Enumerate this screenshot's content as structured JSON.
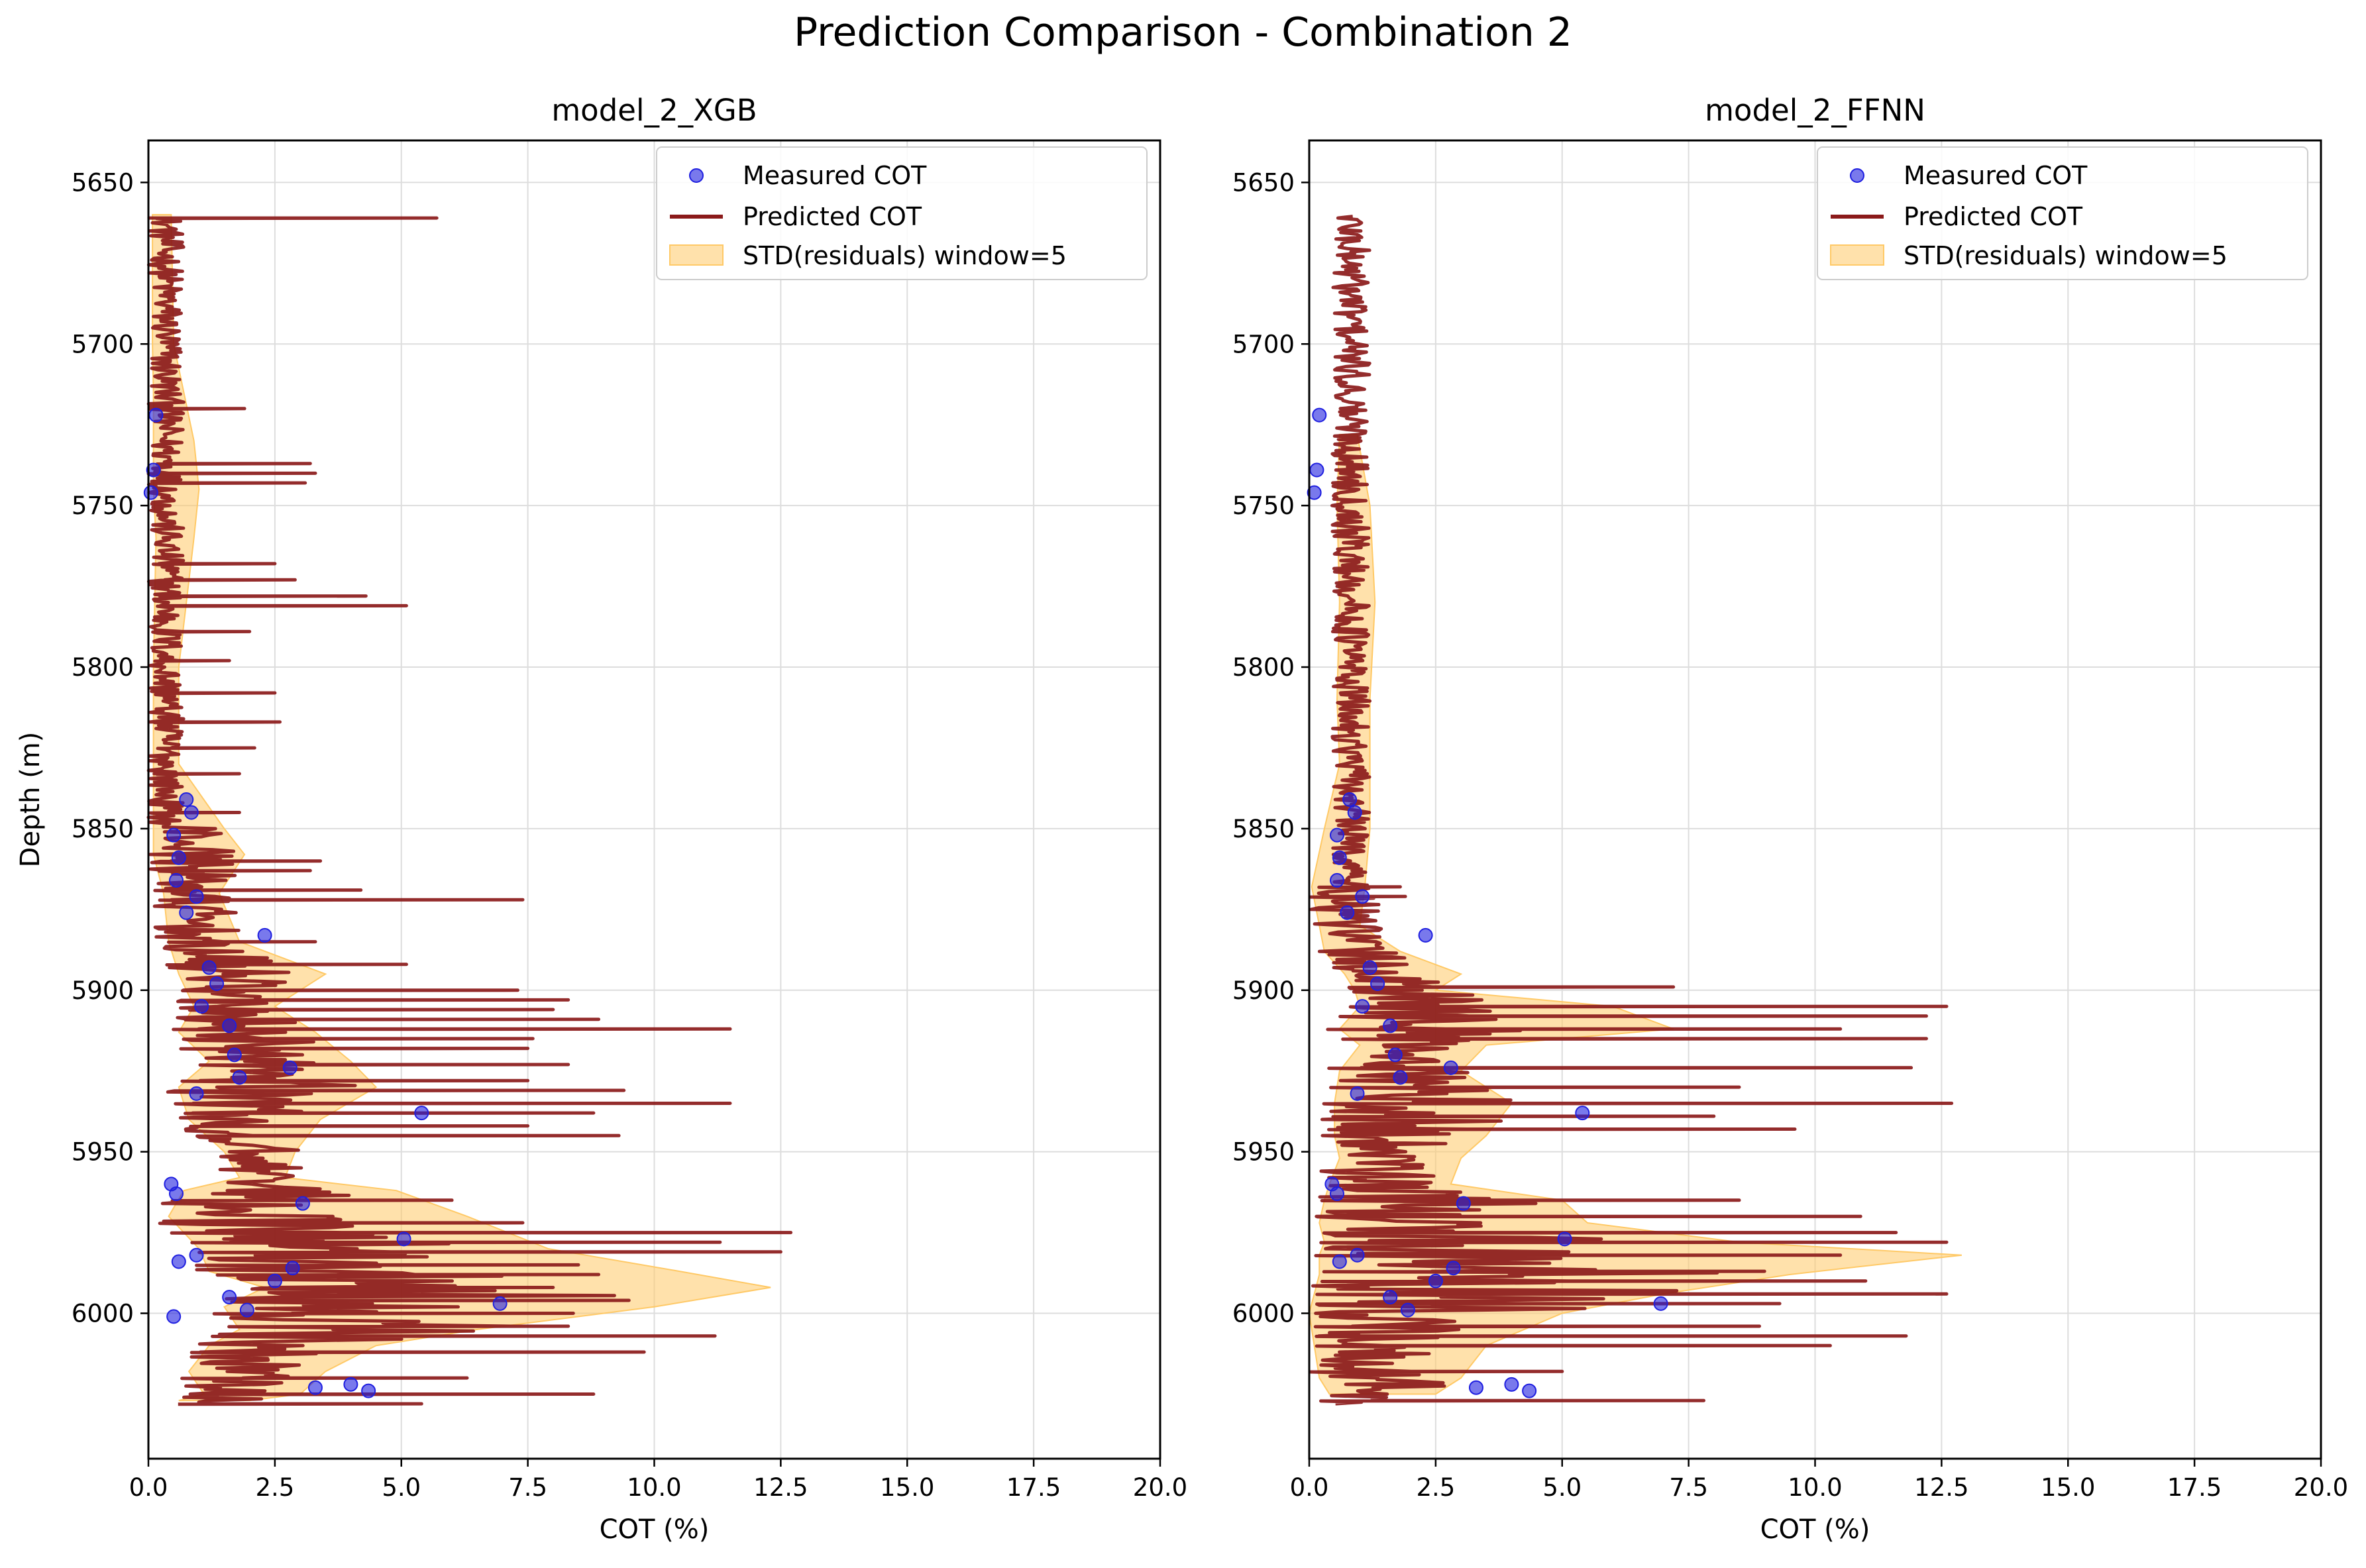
{
  "suptitle": "Prediction Comparison - Combination 2",
  "colors": {
    "measured": "#1f1fe0",
    "predicted": "#8b1a1a",
    "band": "#ffc966",
    "grid": "#dddddd"
  },
  "legend": {
    "measured": "Measured COT",
    "predicted": "Predicted COT",
    "band": "STD(residuals) window=5"
  },
  "chart_data": [
    {
      "type": "line",
      "title": "model_2_XGB",
      "xlabel": "COT (%)",
      "ylabel": "Depth (m)",
      "xlim": [
        0,
        20
      ],
      "ylim": [
        6045,
        5637
      ],
      "y_inverted": true,
      "xticks": [
        "0.0",
        "2.5",
        "5.0",
        "7.5",
        "10.0",
        "12.5",
        "15.0",
        "17.5",
        "20.0"
      ],
      "yticks": [
        "5650",
        "5700",
        "5750",
        "5800",
        "5850",
        "5900",
        "5950",
        "6000"
      ],
      "grid": true,
      "legend_position": "upper-right",
      "measured": [
        [
          0.15,
          5722
        ],
        [
          0.1,
          5739
        ],
        [
          0.05,
          5746
        ],
        [
          0.75,
          5841
        ],
        [
          0.85,
          5845
        ],
        [
          0.5,
          5852
        ],
        [
          0.6,
          5859
        ],
        [
          0.55,
          5866
        ],
        [
          0.95,
          5871
        ],
        [
          0.75,
          5876
        ],
        [
          2.3,
          5883
        ],
        [
          1.2,
          5893
        ],
        [
          1.35,
          5898
        ],
        [
          1.05,
          5905
        ],
        [
          1.6,
          5911
        ],
        [
          1.7,
          5920
        ],
        [
          2.8,
          5924
        ],
        [
          1.8,
          5927
        ],
        [
          0.95,
          5932
        ],
        [
          5.4,
          5938
        ],
        [
          0.45,
          5960
        ],
        [
          0.55,
          5963
        ],
        [
          3.05,
          5966
        ],
        [
          5.05,
          5977
        ],
        [
          0.95,
          5982
        ],
        [
          0.6,
          5984
        ],
        [
          2.85,
          5986
        ],
        [
          2.5,
          5990
        ],
        [
          1.6,
          5995
        ],
        [
          6.95,
          5997
        ],
        [
          1.95,
          5999
        ],
        [
          0.5,
          6001
        ],
        [
          3.3,
          6023
        ],
        [
          4.0,
          6022
        ],
        [
          4.35,
          6024
        ]
      ],
      "band_profile": [
        [
          5660,
          0.08,
          0.45
        ],
        [
          5700,
          0.08,
          0.5
        ],
        [
          5715,
          0.1,
          0.7
        ],
        [
          5730,
          0.1,
          0.9
        ],
        [
          5745,
          0.1,
          1.0
        ],
        [
          5760,
          0.15,
          0.9
        ],
        [
          5800,
          0.1,
          0.6
        ],
        [
          5830,
          0.1,
          0.6
        ],
        [
          5850,
          0.1,
          1.5
        ],
        [
          5858,
          0.1,
          1.9
        ],
        [
          5870,
          0.3,
          1.4
        ],
        [
          5885,
          0.4,
          1.8
        ],
        [
          5895,
          0.6,
          3.5
        ],
        [
          5905,
          0.9,
          2.5
        ],
        [
          5913,
          0.6,
          3.3
        ],
        [
          5922,
          1.2,
          4.0
        ],
        [
          5930,
          0.6,
          4.5
        ],
        [
          5940,
          0.8,
          3.4
        ],
        [
          5950,
          1.5,
          2.9
        ],
        [
          5958,
          1.8,
          2.7
        ],
        [
          5962,
          0.7,
          4.9
        ],
        [
          5970,
          0.4,
          6.3
        ],
        [
          5980,
          1.0,
          7.9
        ],
        [
          5987,
          1.2,
          10.5
        ],
        [
          5992,
          2.3,
          12.3
        ],
        [
          5998,
          1.5,
          10.0
        ],
        [
          6005,
          1.8,
          6.5
        ],
        [
          6010,
          1.2,
          4.5
        ],
        [
          6018,
          0.8,
          3.5
        ],
        [
          6025,
          1.1,
          3.0
        ],
        [
          6027,
          0.6,
          2.0
        ]
      ],
      "prediction_spikes": [
        [
          5661,
          5.7
        ],
        [
          5720,
          1.9
        ],
        [
          5737,
          3.2
        ],
        [
          5740,
          3.3
        ],
        [
          5743,
          3.1
        ],
        [
          5768,
          2.5
        ],
        [
          5773,
          2.9
        ],
        [
          5778,
          4.3
        ],
        [
          5781,
          5.1
        ],
        [
          5789,
          2.0
        ],
        [
          5798,
          1.6
        ],
        [
          5808,
          2.5
        ],
        [
          5817,
          2.6
        ],
        [
          5825,
          2.1
        ],
        [
          5833,
          1.8
        ],
        [
          5845,
          1.8
        ],
        [
          5860,
          3.4
        ],
        [
          5863,
          3.2
        ],
        [
          5869,
          4.2
        ],
        [
          5872,
          7.4
        ],
        [
          5885,
          3.3
        ],
        [
          5892,
          5.1
        ],
        [
          5900,
          7.3
        ],
        [
          5903,
          8.3
        ],
        [
          5906,
          8.0
        ],
        [
          5909,
          8.9
        ],
        [
          5912,
          11.5
        ],
        [
          5915,
          7.6
        ],
        [
          5918,
          7.5
        ],
        [
          5923,
          8.3
        ],
        [
          5928,
          7.5
        ],
        [
          5931,
          9.4
        ],
        [
          5935,
          11.5
        ],
        [
          5938,
          8.8
        ],
        [
          5942,
          7.5
        ],
        [
          5945,
          9.3
        ],
        [
          5965,
          6.0
        ],
        [
          5972,
          7.4
        ],
        [
          5975,
          12.7
        ],
        [
          5978,
          11.3
        ],
        [
          5981,
          12.5
        ],
        [
          5985,
          8.5
        ],
        [
          5988,
          8.9
        ],
        [
          5992,
          8.0
        ],
        [
          5996,
          9.5
        ],
        [
          6000,
          8.4
        ],
        [
          6004,
          8.3
        ],
        [
          6007,
          11.2
        ],
        [
          6012,
          9.8
        ],
        [
          6020,
          6.3
        ],
        [
          6025,
          8.8
        ],
        [
          6028,
          5.4
        ]
      ]
    },
    {
      "type": "line",
      "title": "model_2_FFNN",
      "xlabel": "COT (%)",
      "ylabel": "",
      "xlim": [
        0,
        20
      ],
      "ylim": [
        6045,
        5637
      ],
      "y_inverted": true,
      "xticks": [
        "0.0",
        "2.5",
        "5.0",
        "7.5",
        "10.0",
        "12.5",
        "15.0",
        "17.5",
        "20.0"
      ],
      "yticks": [
        "5650",
        "5700",
        "5750",
        "5800",
        "5850",
        "5900",
        "5950",
        "6000"
      ],
      "grid": true,
      "legend_position": "upper-right",
      "measured": [
        [
          0.2,
          5722
        ],
        [
          0.15,
          5739
        ],
        [
          0.1,
          5746
        ],
        [
          0.8,
          5841
        ],
        [
          0.9,
          5845
        ],
        [
          0.55,
          5852
        ],
        [
          0.6,
          5859
        ],
        [
          0.55,
          5866
        ],
        [
          1.05,
          5871
        ],
        [
          0.75,
          5876
        ],
        [
          2.3,
          5883
        ],
        [
          1.2,
          5893
        ],
        [
          1.35,
          5898
        ],
        [
          1.05,
          5905
        ],
        [
          1.6,
          5911
        ],
        [
          1.7,
          5920
        ],
        [
          2.8,
          5924
        ],
        [
          1.8,
          5927
        ],
        [
          0.95,
          5932
        ],
        [
          5.4,
          5938
        ],
        [
          0.45,
          5960
        ],
        [
          0.55,
          5963
        ],
        [
          3.05,
          5966
        ],
        [
          5.05,
          5977
        ],
        [
          0.95,
          5982
        ],
        [
          0.6,
          5984
        ],
        [
          2.85,
          5986
        ],
        [
          2.5,
          5990
        ],
        [
          1.6,
          5995
        ],
        [
          6.95,
          5997
        ],
        [
          1.95,
          5999
        ],
        [
          3.3,
          6023
        ],
        [
          4.0,
          6022
        ],
        [
          4.35,
          6024
        ]
      ],
      "band_profile": [
        [
          5728,
          0.6,
          0.95
        ],
        [
          5750,
          0.55,
          1.2
        ],
        [
          5780,
          0.6,
          1.3
        ],
        [
          5810,
          0.55,
          1.2
        ],
        [
          5830,
          0.6,
          1.2
        ],
        [
          5850,
          0.3,
          1.2
        ],
        [
          5868,
          0.05,
          1.1
        ],
        [
          5880,
          0.2,
          1.0
        ],
        [
          5888,
          0.3,
          1.8
        ],
        [
          5895,
          0.7,
          3.0
        ],
        [
          5900,
          0.9,
          2.5
        ],
        [
          5905,
          1.0,
          6.0
        ],
        [
          5912,
          0.6,
          7.2
        ],
        [
          5917,
          1.0,
          3.5
        ],
        [
          5925,
          0.6,
          3.0
        ],
        [
          5935,
          0.5,
          4.0
        ],
        [
          5945,
          0.5,
          3.5
        ],
        [
          5952,
          0.6,
          3.0
        ],
        [
          5960,
          0.4,
          2.8
        ],
        [
          5965,
          0.3,
          5.0
        ],
        [
          5972,
          0.2,
          5.5
        ],
        [
          5978,
          0.3,
          8.5
        ],
        [
          5982,
          0.2,
          12.9
        ],
        [
          5988,
          0.2,
          9.5
        ],
        [
          5994,
          0.1,
          7.0
        ],
        [
          6000,
          0.0,
          5.0
        ],
        [
          6010,
          0.1,
          3.5
        ],
        [
          6020,
          0.2,
          3.0
        ],
        [
          6025,
          0.4,
          2.5
        ]
      ],
      "prediction_spikes": [
        [
          5868,
          1.8
        ],
        [
          5871,
          1.9
        ],
        [
          5899,
          7.2
        ],
        [
          5905,
          12.6
        ],
        [
          5908,
          12.2
        ],
        [
          5912,
          10.5
        ],
        [
          5915,
          12.2
        ],
        [
          5924,
          11.9
        ],
        [
          5930,
          8.5
        ],
        [
          5935,
          12.7
        ],
        [
          5939,
          8.0
        ],
        [
          5943,
          9.6
        ],
        [
          5965,
          8.5
        ],
        [
          5970,
          10.9
        ],
        [
          5975,
          11.6
        ],
        [
          5978,
          12.6
        ],
        [
          5982,
          10.5
        ],
        [
          5987,
          9.0
        ],
        [
          5990,
          11.0
        ],
        [
          5994,
          12.6
        ],
        [
          5997,
          9.3
        ],
        [
          6004,
          8.9
        ],
        [
          6007,
          11.8
        ],
        [
          6010,
          10.3
        ],
        [
          6018,
          5.0
        ],
        [
          6027,
          7.8
        ]
      ]
    }
  ]
}
